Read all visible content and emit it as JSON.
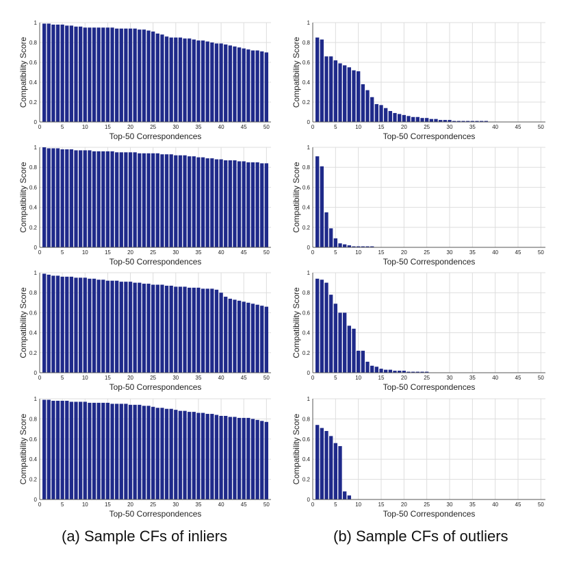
{
  "figure": {
    "captions": {
      "inliers": "(a) Sample CFs of inliers",
      "outliers": "(b) Sample CFs of outliers"
    },
    "colors": {
      "bar": "#1f2a8a",
      "grid": "#dddddd",
      "axis": "#555555",
      "text": "#222222"
    }
  },
  "chart_data": [
    {
      "type": "bar",
      "panel": "inliers-1",
      "xlabel": "Top-50 Correspondences",
      "ylabel": "Compatibility Score",
      "xlim": [
        0,
        51
      ],
      "ylim": [
        0,
        1
      ],
      "xticks": [
        0,
        5,
        10,
        15,
        20,
        25,
        30,
        35,
        40,
        45,
        50
      ],
      "yticks": [
        0,
        0.2,
        0.4,
        0.6,
        0.8,
        1
      ],
      "x": [
        1,
        2,
        3,
        4,
        5,
        6,
        7,
        8,
        9,
        10,
        11,
        12,
        13,
        14,
        15,
        16,
        17,
        18,
        19,
        20,
        21,
        22,
        23,
        24,
        25,
        26,
        27,
        28,
        29,
        30,
        31,
        32,
        33,
        34,
        35,
        36,
        37,
        38,
        39,
        40,
        41,
        42,
        43,
        44,
        45,
        46,
        47,
        48,
        49,
        50
      ],
      "values": [
        0.99,
        0.99,
        0.98,
        0.98,
        0.98,
        0.97,
        0.97,
        0.96,
        0.96,
        0.95,
        0.95,
        0.95,
        0.95,
        0.95,
        0.95,
        0.95,
        0.94,
        0.94,
        0.94,
        0.94,
        0.94,
        0.93,
        0.93,
        0.92,
        0.91,
        0.89,
        0.88,
        0.86,
        0.85,
        0.85,
        0.85,
        0.84,
        0.84,
        0.83,
        0.82,
        0.82,
        0.81,
        0.8,
        0.79,
        0.79,
        0.78,
        0.77,
        0.76,
        0.75,
        0.74,
        0.73,
        0.72,
        0.72,
        0.71,
        0.7
      ]
    },
    {
      "type": "bar",
      "panel": "outliers-1",
      "xlabel": "Top-50 Correspondences",
      "ylabel": "Compatibility Score",
      "xlim": [
        0,
        51
      ],
      "ylim": [
        0,
        1
      ],
      "xticks": [
        0,
        5,
        10,
        15,
        20,
        25,
        30,
        35,
        40,
        45,
        50
      ],
      "yticks": [
        0,
        0.2,
        0.4,
        0.6,
        0.8,
        1
      ],
      "x": [
        1,
        2,
        3,
        4,
        5,
        6,
        7,
        8,
        9,
        10,
        11,
        12,
        13,
        14,
        15,
        16,
        17,
        18,
        19,
        20,
        21,
        22,
        23,
        24,
        25,
        26,
        27,
        28,
        29,
        30,
        31,
        32,
        33,
        34,
        35,
        36,
        37,
        38,
        39,
        40,
        41,
        42,
        43,
        44,
        45,
        46,
        47,
        48,
        49,
        50
      ],
      "values": [
        0.85,
        0.83,
        0.66,
        0.66,
        0.62,
        0.59,
        0.57,
        0.55,
        0.52,
        0.51,
        0.38,
        0.32,
        0.25,
        0.18,
        0.17,
        0.14,
        0.11,
        0.09,
        0.08,
        0.07,
        0.06,
        0.05,
        0.05,
        0.04,
        0.04,
        0.03,
        0.03,
        0.02,
        0.02,
        0.02,
        0.01,
        0.01,
        0.01,
        0.01,
        0.01,
        0.01,
        0.01,
        0.01,
        0,
        0,
        0,
        0,
        0,
        0,
        0,
        0,
        0,
        0,
        0,
        0
      ]
    },
    {
      "type": "bar",
      "panel": "inliers-2",
      "xlabel": "Top-50 Correspondences",
      "ylabel": "Compatibility Score",
      "xlim": [
        0,
        51
      ],
      "ylim": [
        0,
        1
      ],
      "xticks": [
        0,
        5,
        10,
        15,
        20,
        25,
        30,
        35,
        40,
        45,
        50
      ],
      "yticks": [
        0,
        0.2,
        0.4,
        0.6,
        0.8,
        1
      ],
      "x": [
        1,
        2,
        3,
        4,
        5,
        6,
        7,
        8,
        9,
        10,
        11,
        12,
        13,
        14,
        15,
        16,
        17,
        18,
        19,
        20,
        21,
        22,
        23,
        24,
        25,
        26,
        27,
        28,
        29,
        30,
        31,
        32,
        33,
        34,
        35,
        36,
        37,
        38,
        39,
        40,
        41,
        42,
        43,
        44,
        45,
        46,
        47,
        48,
        49,
        50
      ],
      "values": [
        1.0,
        0.99,
        0.99,
        0.99,
        0.98,
        0.98,
        0.98,
        0.97,
        0.97,
        0.97,
        0.97,
        0.96,
        0.96,
        0.96,
        0.96,
        0.96,
        0.95,
        0.95,
        0.95,
        0.95,
        0.95,
        0.94,
        0.94,
        0.94,
        0.94,
        0.94,
        0.93,
        0.93,
        0.93,
        0.92,
        0.92,
        0.92,
        0.91,
        0.91,
        0.9,
        0.9,
        0.89,
        0.89,
        0.88,
        0.88,
        0.87,
        0.87,
        0.87,
        0.86,
        0.86,
        0.85,
        0.85,
        0.85,
        0.84,
        0.84
      ]
    },
    {
      "type": "bar",
      "panel": "outliers-2",
      "xlabel": "Top-50 Correspondences",
      "ylabel": "Compatibility Score",
      "xlim": [
        0,
        51
      ],
      "ylim": [
        0,
        1
      ],
      "xticks": [
        0,
        5,
        10,
        15,
        20,
        25,
        30,
        35,
        40,
        45,
        50
      ],
      "yticks": [
        0,
        0.2,
        0.4,
        0.6,
        0.8,
        1
      ],
      "x": [
        1,
        2,
        3,
        4,
        5,
        6,
        7,
        8,
        9,
        10,
        11,
        12,
        13,
        14,
        15,
        16,
        17,
        18,
        19,
        20,
        21,
        22,
        23,
        24,
        25,
        26,
        27,
        28,
        29,
        30,
        31,
        32,
        33,
        34,
        35,
        36,
        37,
        38,
        39,
        40,
        41,
        42,
        43,
        44,
        45,
        46,
        47,
        48,
        49,
        50
      ],
      "values": [
        0.91,
        0.81,
        0.35,
        0.19,
        0.09,
        0.04,
        0.03,
        0.02,
        0.01,
        0.01,
        0.01,
        0.01,
        0.01,
        0,
        0,
        0,
        0,
        0,
        0,
        0,
        0,
        0,
        0,
        0,
        0,
        0,
        0,
        0,
        0,
        0,
        0,
        0,
        0,
        0,
        0,
        0,
        0,
        0,
        0,
        0,
        0,
        0,
        0,
        0,
        0,
        0,
        0,
        0,
        0,
        0
      ]
    },
    {
      "type": "bar",
      "panel": "inliers-3",
      "xlabel": "Top-50 Correspondences",
      "ylabel": "Compatibility Score",
      "xlim": [
        0,
        51
      ],
      "ylim": [
        0,
        1
      ],
      "xticks": [
        0,
        5,
        10,
        15,
        20,
        25,
        30,
        35,
        40,
        45,
        50
      ],
      "yticks": [
        0,
        0.2,
        0.4,
        0.6,
        0.8,
        1
      ],
      "x": [
        1,
        2,
        3,
        4,
        5,
        6,
        7,
        8,
        9,
        10,
        11,
        12,
        13,
        14,
        15,
        16,
        17,
        18,
        19,
        20,
        21,
        22,
        23,
        24,
        25,
        26,
        27,
        28,
        29,
        30,
        31,
        32,
        33,
        34,
        35,
        36,
        37,
        38,
        39,
        40,
        41,
        42,
        43,
        44,
        45,
        46,
        47,
        48,
        49,
        50
      ],
      "values": [
        0.99,
        0.98,
        0.97,
        0.97,
        0.96,
        0.96,
        0.96,
        0.95,
        0.95,
        0.95,
        0.94,
        0.94,
        0.93,
        0.93,
        0.92,
        0.92,
        0.92,
        0.91,
        0.91,
        0.91,
        0.9,
        0.9,
        0.89,
        0.89,
        0.88,
        0.88,
        0.88,
        0.87,
        0.87,
        0.86,
        0.86,
        0.86,
        0.85,
        0.85,
        0.85,
        0.84,
        0.84,
        0.84,
        0.83,
        0.8,
        0.76,
        0.74,
        0.73,
        0.72,
        0.71,
        0.7,
        0.69,
        0.68,
        0.67,
        0.66
      ]
    },
    {
      "type": "bar",
      "panel": "outliers-3",
      "xlabel": "Top-50 Correspondences",
      "ylabel": "Compatibility Score",
      "xlim": [
        0,
        51
      ],
      "ylim": [
        0,
        1
      ],
      "xticks": [
        0,
        5,
        10,
        15,
        20,
        25,
        30,
        35,
        40,
        45,
        50
      ],
      "yticks": [
        0,
        0.2,
        0.4,
        0.6,
        0.8,
        1
      ],
      "x": [
        1,
        2,
        3,
        4,
        5,
        6,
        7,
        8,
        9,
        10,
        11,
        12,
        13,
        14,
        15,
        16,
        17,
        18,
        19,
        20,
        21,
        22,
        23,
        24,
        25,
        26,
        27,
        28,
        29,
        30,
        31,
        32,
        33,
        34,
        35,
        36,
        37,
        38,
        39,
        40,
        41,
        42,
        43,
        44,
        45,
        46,
        47,
        48,
        49,
        50
      ],
      "values": [
        0.94,
        0.93,
        0.9,
        0.78,
        0.69,
        0.6,
        0.6,
        0.47,
        0.44,
        0.22,
        0.22,
        0.11,
        0.07,
        0.06,
        0.04,
        0.03,
        0.03,
        0.02,
        0.02,
        0.02,
        0.01,
        0.01,
        0.01,
        0.01,
        0.01,
        0,
        0,
        0,
        0,
        0,
        0,
        0,
        0,
        0,
        0,
        0,
        0,
        0,
        0,
        0,
        0,
        0,
        0,
        0,
        0,
        0,
        0,
        0,
        0,
        0
      ]
    },
    {
      "type": "bar",
      "panel": "inliers-4",
      "xlabel": "Top-50 Correspondences",
      "ylabel": "Compatibility Score",
      "xlim": [
        0,
        51
      ],
      "ylim": [
        0,
        1
      ],
      "xticks": [
        0,
        5,
        10,
        15,
        20,
        25,
        30,
        35,
        40,
        45,
        50
      ],
      "yticks": [
        0,
        0.2,
        0.4,
        0.6,
        0.8,
        1
      ],
      "x": [
        1,
        2,
        3,
        4,
        5,
        6,
        7,
        8,
        9,
        10,
        11,
        12,
        13,
        14,
        15,
        16,
        17,
        18,
        19,
        20,
        21,
        22,
        23,
        24,
        25,
        26,
        27,
        28,
        29,
        30,
        31,
        32,
        33,
        34,
        35,
        36,
        37,
        38,
        39,
        40,
        41,
        42,
        43,
        44,
        45,
        46,
        47,
        48,
        49,
        50
      ],
      "values": [
        0.99,
        0.99,
        0.98,
        0.98,
        0.98,
        0.98,
        0.97,
        0.97,
        0.97,
        0.97,
        0.96,
        0.96,
        0.96,
        0.96,
        0.96,
        0.95,
        0.95,
        0.95,
        0.95,
        0.94,
        0.94,
        0.94,
        0.93,
        0.93,
        0.92,
        0.91,
        0.91,
        0.9,
        0.9,
        0.89,
        0.88,
        0.88,
        0.87,
        0.87,
        0.86,
        0.86,
        0.85,
        0.85,
        0.84,
        0.83,
        0.83,
        0.82,
        0.82,
        0.81,
        0.81,
        0.81,
        0.8,
        0.79,
        0.78,
        0.77
      ]
    },
    {
      "type": "bar",
      "panel": "outliers-4",
      "xlabel": "Top-50 Correspondences",
      "ylabel": "Compatibility Score",
      "xlim": [
        0,
        51
      ],
      "ylim": [
        0,
        1
      ],
      "xticks": [
        0,
        5,
        10,
        15,
        20,
        25,
        30,
        35,
        40,
        45,
        50
      ],
      "yticks": [
        0,
        0.2,
        0.4,
        0.6,
        0.8,
        1
      ],
      "x": [
        1,
        2,
        3,
        4,
        5,
        6,
        7,
        8,
        9,
        10,
        11,
        12,
        13,
        14,
        15,
        16,
        17,
        18,
        19,
        20,
        21,
        22,
        23,
        24,
        25,
        26,
        27,
        28,
        29,
        30,
        31,
        32,
        33,
        34,
        35,
        36,
        37,
        38,
        39,
        40,
        41,
        42,
        43,
        44,
        45,
        46,
        47,
        48,
        49,
        50
      ],
      "values": [
        0.74,
        0.71,
        0.68,
        0.63,
        0.56,
        0.53,
        0.08,
        0.04,
        0,
        0,
        0,
        0,
        0,
        0,
        0,
        0,
        0,
        0,
        0,
        0,
        0,
        0,
        0,
        0,
        0,
        0,
        0,
        0,
        0,
        0,
        0,
        0,
        0,
        0,
        0,
        0,
        0,
        0,
        0,
        0,
        0,
        0,
        0,
        0,
        0,
        0,
        0,
        0,
        0,
        0
      ]
    }
  ]
}
